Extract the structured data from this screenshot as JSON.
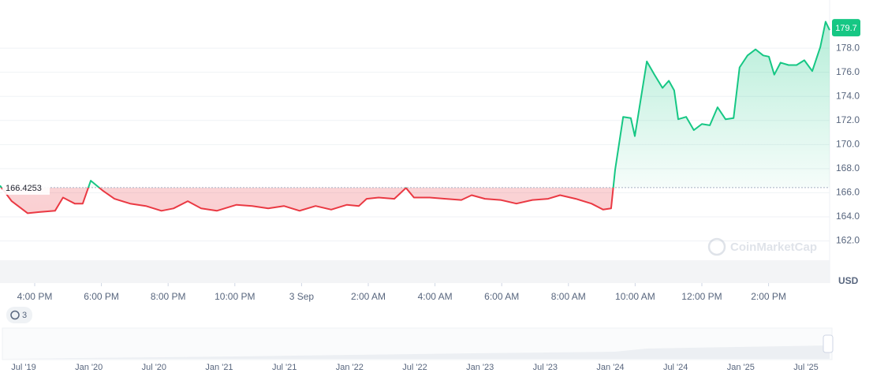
{
  "chart_data": {
    "type": "line",
    "x": [
      -9.04,
      -8.69,
      -8.21,
      -7.86,
      -7.39,
      -7.15,
      -6.8,
      -6.56,
      -6.32,
      -5.97,
      -5.61,
      -5.14,
      -4.67,
      -4.2,
      -3.84,
      -3.41,
      -3.01,
      -2.54,
      -1.95,
      -1.48,
      -1.0,
      -0.53,
      -0.06,
      0.42,
      0.89,
      1.36,
      1.72,
      1.95,
      2.31,
      2.78,
      3.13,
      3.37,
      3.84,
      4.32,
      4.79,
      5.1,
      5.5,
      5.97,
      6.44,
      6.92,
      7.39,
      7.75,
      8.22,
      8.69,
      9.04,
      9.28,
      9.4,
      9.64,
      9.87,
      9.99,
      10.35,
      10.58,
      10.82,
      11.01,
      11.17,
      11.29,
      11.53,
      11.76,
      12.0,
      12.24,
      12.47,
      12.71,
      12.95,
      13.13,
      13.37,
      13.61,
      13.84,
      14.01,
      14.17,
      14.36,
      14.6,
      14.84,
      15.07,
      15.31,
      15.55,
      15.71,
      15.83
    ],
    "values": [
      166.6,
      165.3,
      164.3,
      164.4,
      164.5,
      165.6,
      165.1,
      165.1,
      167.0,
      166.2,
      165.5,
      165.1,
      164.9,
      164.5,
      164.7,
      165.3,
      164.7,
      164.5,
      165.0,
      164.9,
      164.7,
      164.9,
      164.5,
      164.9,
      164.6,
      165.0,
      164.9,
      165.5,
      165.6,
      165.5,
      166.4,
      165.6,
      165.6,
      165.5,
      165.4,
      165.8,
      165.5,
      165.4,
      165.1,
      165.4,
      165.5,
      165.8,
      165.5,
      165.1,
      164.6,
      164.7,
      167.9,
      172.3,
      172.2,
      170.7,
      176.9,
      175.8,
      174.7,
      175.3,
      174.5,
      172.1,
      172.3,
      171.2,
      171.7,
      171.6,
      173.1,
      172.1,
      172.2,
      176.4,
      177.4,
      177.9,
      177.4,
      177.3,
      175.8,
      176.8,
      176.6,
      176.6,
      177.0,
      176.1,
      178.1,
      180.2,
      179.5
    ],
    "xlim": [
      -9.04,
      15.83
    ],
    "ylim": [
      158.5,
      182
    ],
    "xticks": [
      {
        "value": -8,
        "label": "4:00 PM"
      },
      {
        "value": -6,
        "label": "6:00 PM"
      },
      {
        "value": -4,
        "label": "8:00 PM"
      },
      {
        "value": -2,
        "label": "10:00 PM"
      },
      {
        "value": 0,
        "label": "3 Sep"
      },
      {
        "value": 2,
        "label": "2:00 AM"
      },
      {
        "value": 4,
        "label": "4:00 AM"
      },
      {
        "value": 6,
        "label": "6:00 AM"
      },
      {
        "value": 8,
        "label": "8:00 AM"
      },
      {
        "value": 10,
        "label": "10:00 AM"
      },
      {
        "value": 12,
        "label": "12:00 PM"
      },
      {
        "value": 14,
        "label": "2:00 PM"
      }
    ],
    "yticks": [
      {
        "value": 162,
        "label": "162.0"
      },
      {
        "value": 164,
        "label": "164.0"
      },
      {
        "value": 166,
        "label": "166.0"
      },
      {
        "value": 168,
        "label": "168.0"
      },
      {
        "value": 170,
        "label": "170.0"
      },
      {
        "value": 172,
        "label": "172.0"
      },
      {
        "value": 174,
        "label": "174.0"
      },
      {
        "value": 176,
        "label": "176.0"
      },
      {
        "value": 178,
        "label": "178.0"
      }
    ],
    "grid": true,
    "baseline": 166.4253,
    "last_price": 179.7,
    "up_color": "#16c784",
    "down_color": "#ea3943",
    "currency": "USD",
    "watermark": "CoinMarketCap",
    "history_count": 3,
    "navigator_labels": [
      "Jul '19",
      "Jan '20",
      "Jul '20",
      "Jan '21",
      "Jul '21",
      "Jan '22",
      "Jul '22",
      "Jan '23",
      "Jul '23",
      "Jan '24",
      "Jul '24",
      "Jan '25",
      "Jul '25"
    ]
  }
}
